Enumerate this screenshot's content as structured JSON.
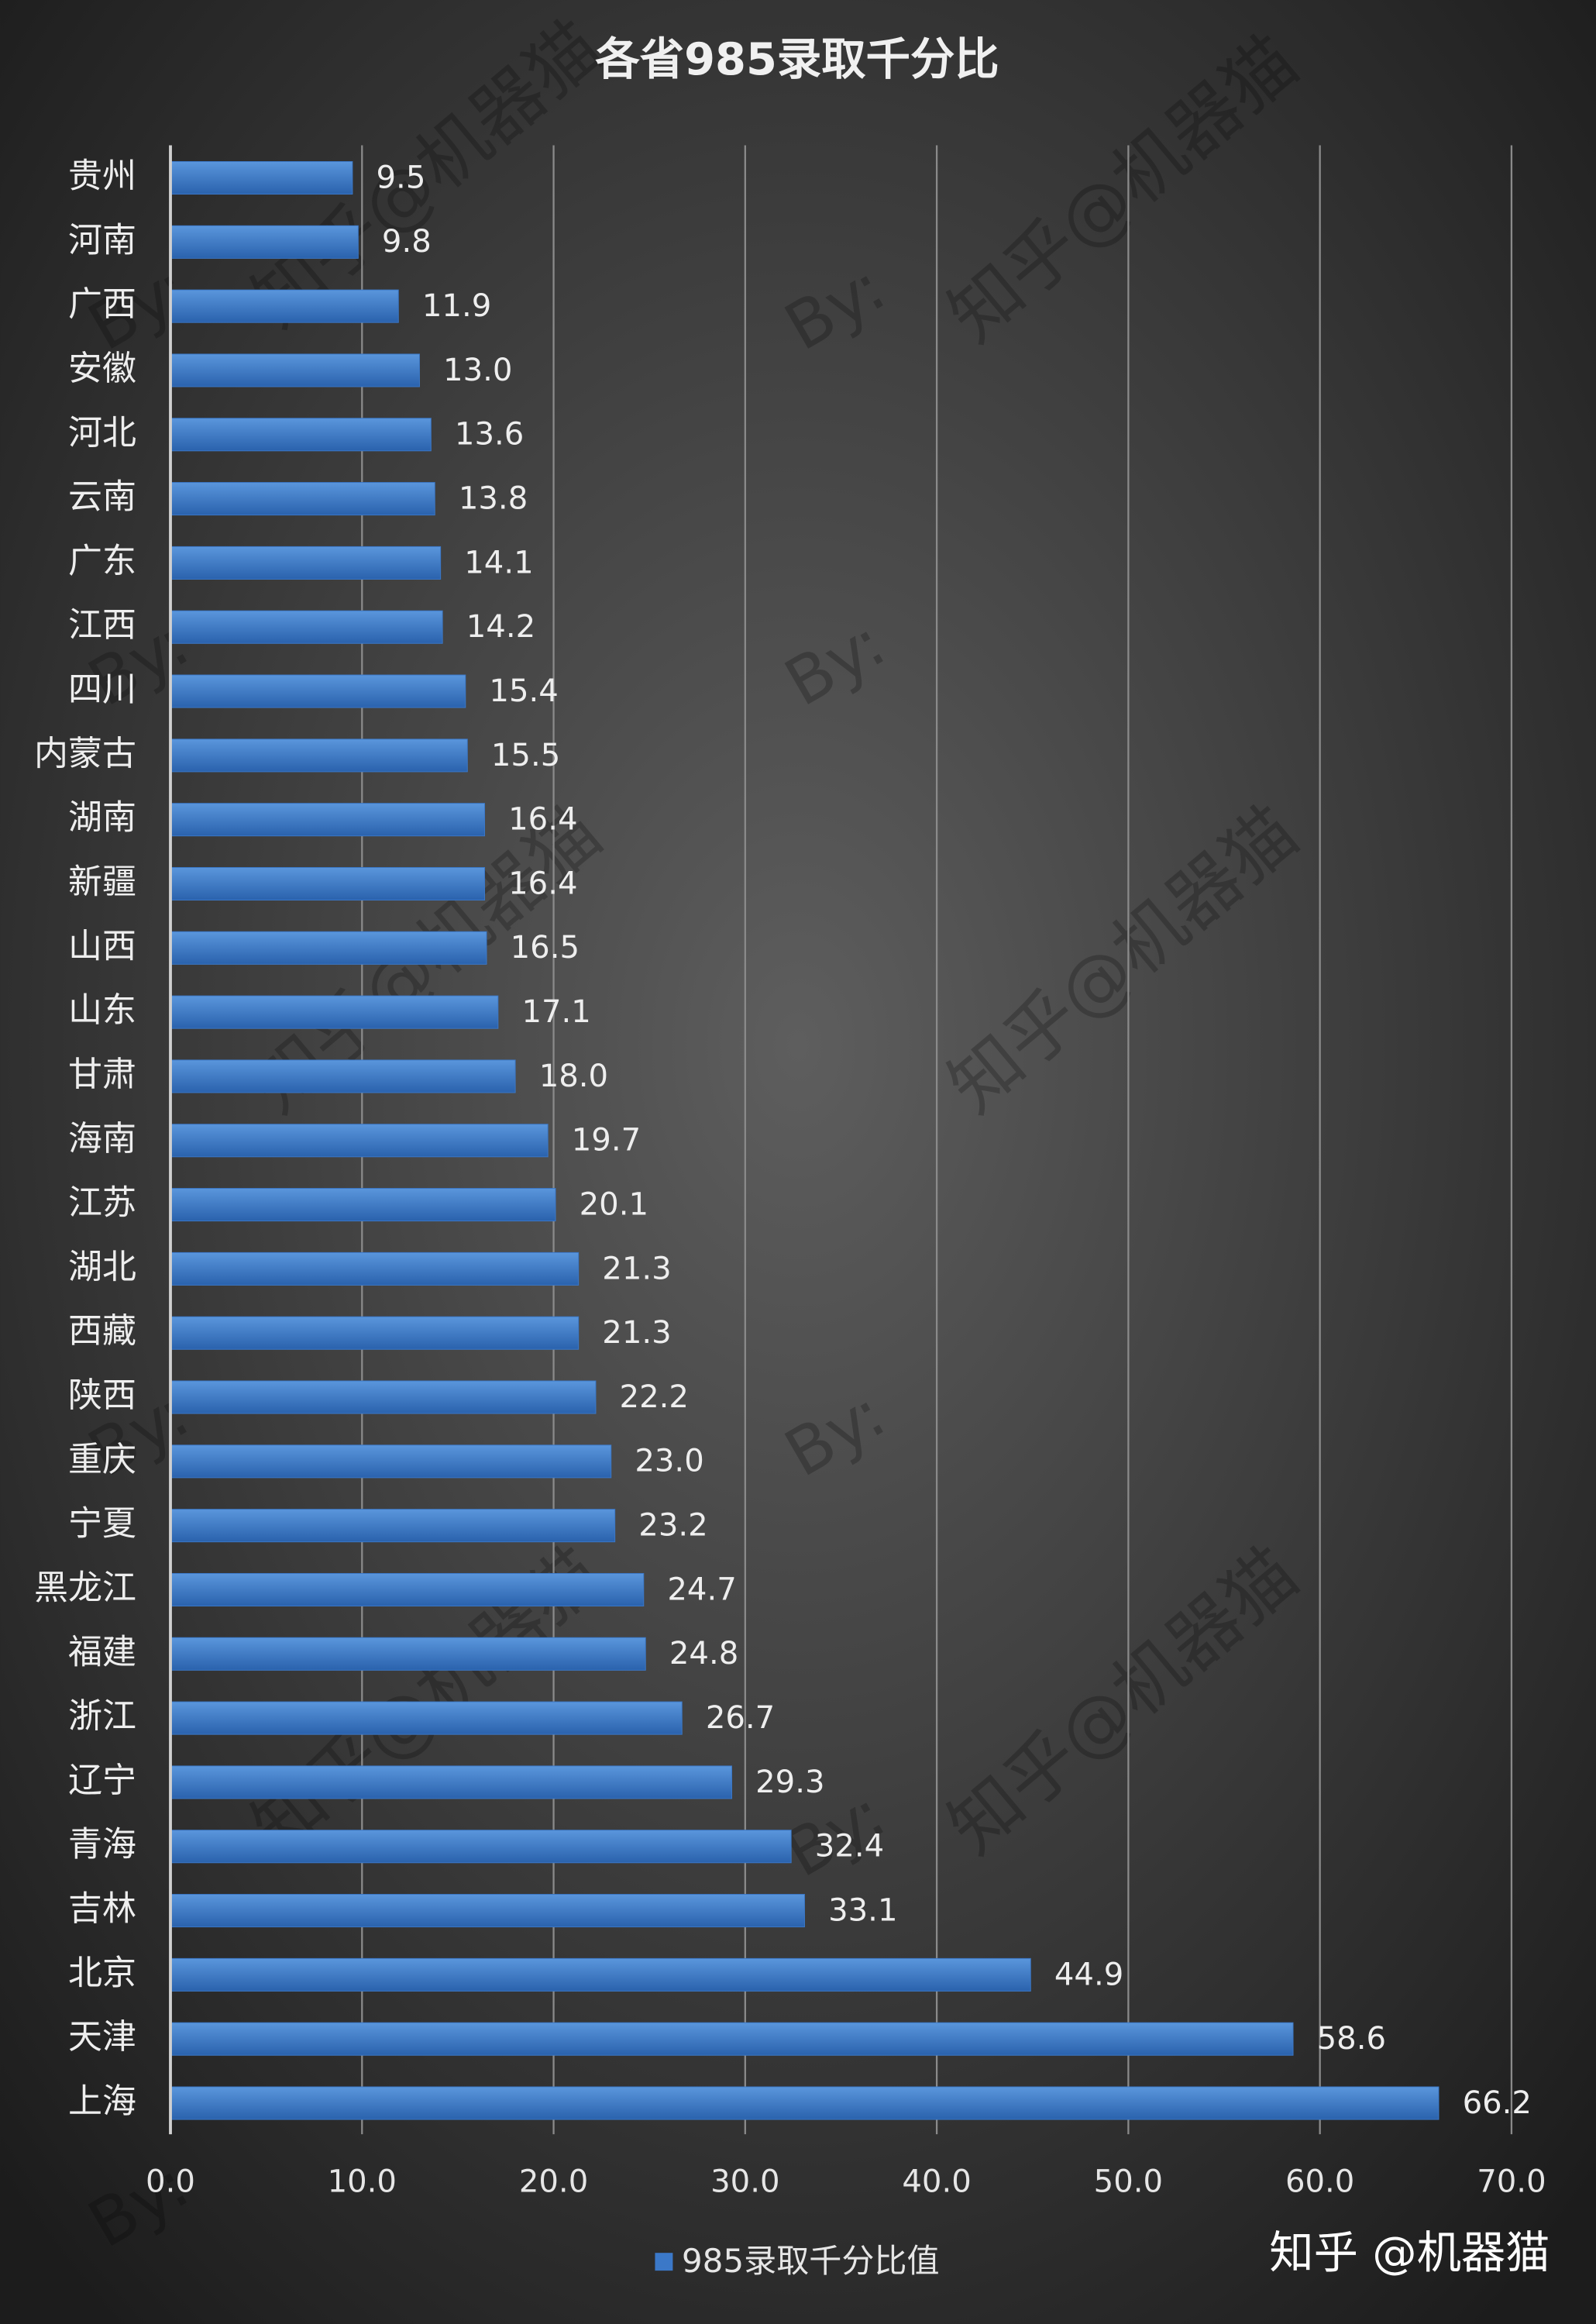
{
  "chart_data": {
    "type": "hbar",
    "title": "各省985录取千分比",
    "categories": [
      "贵州",
      "河南",
      "广西",
      "安徽",
      "河北",
      "云南",
      "广东",
      "江西",
      "四川",
      "内蒙古",
      "湖南",
      "新疆",
      "山西",
      "山东",
      "甘肃",
      "海南",
      "江苏",
      "湖北",
      "西藏",
      "陕西",
      "重庆",
      "宁夏",
      "黑龙江",
      "福建",
      "浙江",
      "辽宁",
      "青海",
      "吉林",
      "北京",
      "天津",
      "上海"
    ],
    "series": [
      {
        "name": "985录取千分比值",
        "color": "#3b78c8",
        "values": [
          9.5,
          9.8,
          11.9,
          13.0,
          13.6,
          13.8,
          14.1,
          14.2,
          15.4,
          15.5,
          16.4,
          16.4,
          16.5,
          17.1,
          18.0,
          19.7,
          20.1,
          21.3,
          21.3,
          22.2,
          23.0,
          23.2,
          24.7,
          24.8,
          26.7,
          29.3,
          32.4,
          33.1,
          44.9,
          58.6,
          66.2
        ],
        "value_labels": [
          "9.5",
          "9.8",
          "11.9",
          "13.0",
          "13.6",
          "13.8",
          "14.1",
          "14.2",
          "15.4",
          "15.5",
          "16.4",
          "16.4",
          "16.5",
          "17.1",
          "18.0",
          "19.7",
          "20.1",
          "21.3",
          "21.3",
          "22.2",
          "23.0",
          "23.2",
          "24.7",
          "24.8",
          "26.7",
          "29.3",
          "32.4",
          "33.1",
          "44.9",
          "58.6",
          "66.2"
        ]
      }
    ],
    "xlim": [
      0,
      70
    ],
    "xticks": [
      {
        "value": 0,
        "label": "0.0"
      },
      {
        "value": 10,
        "label": "10.0"
      },
      {
        "value": 20,
        "label": "20.0"
      },
      {
        "value": 30,
        "label": "30.0"
      },
      {
        "value": 40,
        "label": "40.0"
      },
      {
        "value": 50,
        "label": "50.0"
      },
      {
        "value": 60,
        "label": "60.0"
      },
      {
        "value": 70,
        "label": "70.0"
      }
    ],
    "grid": true,
    "legend": "bottom",
    "watermark": "知乎@机器猫",
    "watermark_by": "By:",
    "brand": "知乎 @机器猫"
  }
}
